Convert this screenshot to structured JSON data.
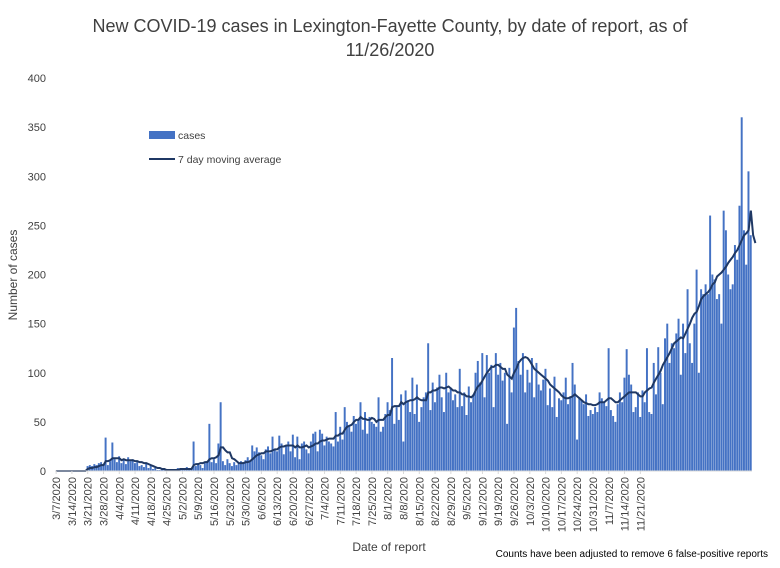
{
  "chart_data": {
    "type": "bar",
    "title_line1": "New COVID-19 cases in Lexington-Fayette County, by date of report, as of",
    "title_line2": "11/26/2020",
    "xlabel": "Date of report",
    "ylabel": "Number of cases",
    "ylim": [
      0,
      400
    ],
    "yticks": [
      0,
      50,
      100,
      150,
      200,
      250,
      300,
      350,
      400
    ],
    "start_date": "3/7/2020",
    "x_ticks": [
      "3/7/2020",
      "3/14/2020",
      "3/21/2020",
      "3/28/2020",
      "4/4/2020",
      "4/11/2020",
      "4/18/2020",
      "4/25/2020",
      "5/2/2020",
      "5/9/2020",
      "5/16/2020",
      "5/23/2020",
      "5/30/2020",
      "6/6/2020",
      "6/13/2020",
      "6/20/2020",
      "6/27/2020",
      "7/4/2020",
      "7/11/2020",
      "7/18/2020",
      "7/25/2020",
      "8/1/2020",
      "8/8/2020",
      "8/15/2020",
      "8/22/2020",
      "8/29/2020",
      "9/5/2020",
      "9/12/2020",
      "9/19/2020",
      "9/26/2020",
      "10/3/2020",
      "10/10/2020",
      "10/17/2020",
      "10/24/2020",
      "10/31/2020",
      "11/7/2020",
      "11/14/2020",
      "11/21/2020"
    ],
    "grid": false,
    "legend_position": "top-left inside",
    "series": [
      {
        "name": "cases",
        "color": "#4472c4",
        "values": [
          0,
          0,
          0,
          0,
          0,
          0,
          0,
          0,
          0,
          0,
          0,
          0,
          0,
          0,
          5,
          6,
          5,
          7,
          6,
          8,
          9,
          7,
          34,
          6,
          10,
          29,
          12,
          9,
          15,
          8,
          12,
          7,
          14,
          10,
          12,
          8,
          9,
          5,
          6,
          4,
          8,
          3,
          6,
          2,
          3,
          1,
          1,
          2,
          1,
          0,
          1,
          1,
          1,
          2,
          3,
          2,
          3,
          1,
          4,
          2,
          3,
          30,
          5,
          8,
          6,
          3,
          8,
          10,
          48,
          9,
          12,
          8,
          28,
          70,
          10,
          6,
          12,
          8,
          5,
          9,
          6,
          8,
          10,
          9,
          11,
          14,
          10,
          26,
          20,
          24,
          19,
          16,
          12,
          22,
          25,
          18,
          35,
          22,
          20,
          36,
          28,
          17,
          25,
          30,
          20,
          37,
          14,
          35,
          12,
          28,
          30,
          22,
          18,
          30,
          38,
          40,
          20,
          42,
          38,
          26,
          35,
          30,
          28,
          25,
          60,
          30,
          45,
          32,
          65,
          50,
          45,
          40,
          56,
          48,
          52,
          70,
          42,
          60,
          38,
          55,
          50,
          48,
          45,
          75,
          40,
          45,
          58,
          70,
          62,
          115,
          48,
          65,
          52,
          78,
          30,
          82,
          72,
          60,
          95,
          58,
          88,
          50,
          65,
          75,
          80,
          130,
          62,
          90,
          70,
          85,
          98,
          75,
          60,
          100,
          80,
          85,
          72,
          78,
          65,
          104,
          66,
          80,
          57,
          86,
          70,
          78,
          100,
          112,
          90,
          120,
          75,
          118,
          100,
          108,
          65,
          120,
          98,
          110,
          92,
          100,
          48,
          105,
          80,
          146,
          166,
          112,
          98,
          120,
          80,
          103,
          90,
          115,
          75,
          110,
          88,
          82,
          93,
          104,
          67,
          84,
          65,
          96,
          55,
          74,
          72,
          80,
          95,
          68,
          76,
          110,
          88,
          32,
          75,
          72,
          68,
          78,
          56,
          62,
          58,
          65,
          60,
          80,
          74,
          70,
          66,
          125,
          62,
          56,
          50,
          68,
          80,
          70,
          95,
          124,
          98,
          88,
          60,
          65,
          80,
          55,
          82,
          70,
          125,
          60,
          58,
          110,
          78,
          126,
          100,
          68,
          135,
          150,
          110,
          130,
          125,
          140,
          155,
          98,
          150,
          120,
          185,
          130,
          110,
          150,
          205,
          100,
          185,
          180,
          190,
          180,
          260,
          200,
          195,
          175,
          180,
          150,
          265,
          245,
          200,
          185,
          190,
          230,
          215,
          270,
          360,
          245,
          210,
          305,
          240
        ],
        "note": "values read approximately from bar heights"
      },
      {
        "name": "7 day moving average",
        "color": "#1f3864",
        "values": [
          0,
          0,
          0,
          0,
          0,
          0,
          0,
          0,
          0,
          0,
          0,
          0,
          0,
          0,
          2,
          3,
          3,
          4,
          4,
          5,
          6,
          6,
          10,
          10,
          11,
          13,
          13,
          13,
          13,
          11,
          12,
          11,
          11,
          11,
          11,
          10,
          10,
          9,
          9,
          8,
          8,
          7,
          6,
          5,
          4,
          3,
          3,
          2,
          2,
          1,
          1,
          1,
          1,
          1,
          1,
          2,
          2,
          2,
          2,
          2,
          2,
          6,
          7,
          7,
          8,
          8,
          9,
          9,
          12,
          13,
          13,
          14,
          16,
          24,
          24,
          21,
          19,
          19,
          13,
          12,
          10,
          8,
          8,
          8,
          9,
          9,
          10,
          12,
          14,
          16,
          17,
          18,
          18,
          20,
          20,
          20,
          21,
          22,
          22,
          24,
          25,
          25,
          26,
          26,
          26,
          26,
          24,
          26,
          24,
          24,
          25,
          26,
          24,
          25,
          26,
          28,
          28,
          30,
          31,
          31,
          32,
          33,
          33,
          33,
          36,
          36,
          38,
          38,
          42,
          45,
          46,
          47,
          50,
          52,
          52,
          55,
          53,
          53,
          52,
          52,
          54,
          53,
          50,
          52,
          52,
          52,
          55,
          57,
          57,
          65,
          66,
          66,
          66,
          70,
          68,
          70,
          71,
          72,
          72,
          73,
          75,
          73,
          72,
          72,
          72,
          80,
          80,
          82,
          82,
          83,
          85,
          85,
          84,
          85,
          86,
          84,
          82,
          82,
          80,
          80,
          78,
          78,
          76,
          76,
          75,
          77,
          82,
          86,
          88,
          92,
          96,
          100,
          103,
          106,
          106,
          108,
          108,
          106,
          104,
          104,
          98,
          96,
          94,
          100,
          104,
          110,
          113,
          115,
          116,
          115,
          112,
          108,
          104,
          102,
          100,
          98,
          96,
          94,
          92,
          88,
          86,
          84,
          82,
          80,
          77,
          75,
          74,
          74,
          75,
          76,
          78,
          76,
          74,
          72,
          70,
          69,
          68,
          68,
          67,
          67,
          68,
          70,
          70,
          70,
          72,
          74,
          74,
          72,
          70,
          70,
          72,
          74,
          76,
          78,
          80,
          80,
          80,
          80,
          78,
          76,
          76,
          80,
          82,
          84,
          85,
          90,
          94,
          98,
          102,
          108,
          112,
          116,
          120,
          125,
          130,
          132,
          134,
          136,
          135,
          140,
          145,
          150,
          156,
          160,
          162,
          168,
          175,
          178,
          180,
          182,
          185,
          190,
          192,
          198,
          200,
          202,
          205,
          208,
          212,
          215,
          218,
          222,
          225,
          230,
          235,
          240,
          242,
          245,
          265,
          240,
          232
        ]
      }
    ]
  },
  "footnote": "Counts have been adjusted to remove 6 false-positive reports"
}
